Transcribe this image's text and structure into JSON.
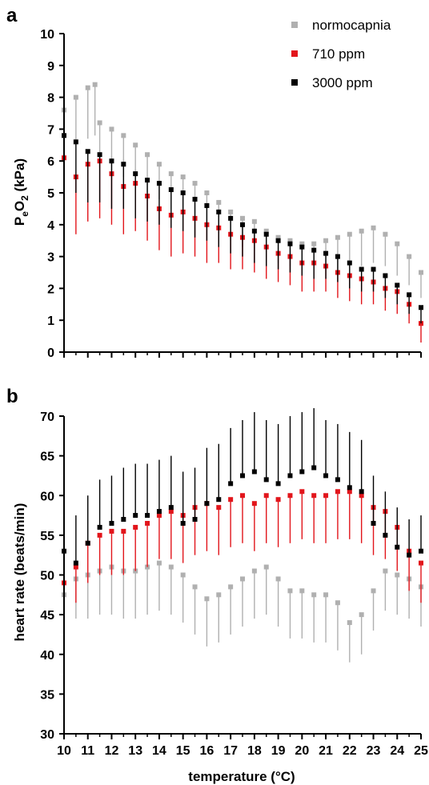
{
  "chart_data": [
    {
      "panel": "a",
      "type": "scatter",
      "ylabel_parts": {
        "base1": "P",
        "sub1": "e",
        "base2": "O",
        "sub2": "2",
        "unit": " (kPa)"
      },
      "xlabel": "",
      "xlim": [
        10,
        25
      ],
      "ylim": [
        0,
        10
      ],
      "yticks": [
        0,
        1,
        2,
        3,
        4,
        5,
        6,
        7,
        8,
        9,
        10
      ],
      "error_bars": "lower",
      "legend_position": "top-right",
      "series": [
        {
          "name": "normocapnia",
          "color": "#b0b0b0",
          "x": [
            10.0,
            10.5,
            11.0,
            11.3,
            11.5,
            12.0,
            12.5,
            13.0,
            13.5,
            14.0,
            14.5,
            15.0,
            15.5,
            16.0,
            16.5,
            17.0,
            17.5,
            18.0,
            18.5,
            19.0,
            19.5,
            20.0,
            20.5,
            21.0,
            21.5,
            22.0,
            22.5,
            23.0,
            23.5,
            24.0,
            24.5,
            25.0
          ],
          "y": [
            7.6,
            8.0,
            8.3,
            8.4,
            7.2,
            7.0,
            6.8,
            6.5,
            6.2,
            5.9,
            5.6,
            5.5,
            5.3,
            5.0,
            4.7,
            4.4,
            4.2,
            4.1,
            3.8,
            3.6,
            3.5,
            3.4,
            3.4,
            3.5,
            3.6,
            3.7,
            3.8,
            3.9,
            3.7,
            3.4,
            3.0,
            2.5
          ],
          "err": [
            1.3,
            1.5,
            1.6,
            1.6,
            1.4,
            1.3,
            1.3,
            1.2,
            1.2,
            1.1,
            1.1,
            1.0,
            1.0,
            1.0,
            0.9,
            0.9,
            0.9,
            0.9,
            0.8,
            0.8,
            0.8,
            0.8,
            0.8,
            0.9,
            1.0,
            1.0,
            1.1,
            1.1,
            1.0,
            1.0,
            0.9,
            0.8
          ]
        },
        {
          "name": "710 ppm",
          "color": "#e2151b",
          "x": [
            10.0,
            10.5,
            11.0,
            11.5,
            12.0,
            12.5,
            13.0,
            13.5,
            14.0,
            14.5,
            15.0,
            15.5,
            16.0,
            16.5,
            17.0,
            17.5,
            18.0,
            18.5,
            19.0,
            19.5,
            20.0,
            20.5,
            21.0,
            21.5,
            22.0,
            22.5,
            23.0,
            23.5,
            24.0,
            24.5,
            25.0
          ],
          "y": [
            6.1,
            5.5,
            5.9,
            6.0,
            5.6,
            5.2,
            5.3,
            4.9,
            4.5,
            4.3,
            4.4,
            4.2,
            4.0,
            3.9,
            3.7,
            3.6,
            3.5,
            3.3,
            3.1,
            3.0,
            2.8,
            2.8,
            2.7,
            2.5,
            2.4,
            2.3,
            2.2,
            2.0,
            1.9,
            1.5,
            0.9
          ],
          "err": [
            2.0,
            1.8,
            1.8,
            1.8,
            1.6,
            1.5,
            1.5,
            1.4,
            1.3,
            1.3,
            1.3,
            1.2,
            1.2,
            1.1,
            1.1,
            1.0,
            1.0,
            1.0,
            0.9,
            0.9,
            0.9,
            0.9,
            0.8,
            0.8,
            0.8,
            0.8,
            0.7,
            0.7,
            0.7,
            0.6,
            0.6
          ]
        },
        {
          "name": "3000 ppm",
          "color": "#000000",
          "x": [
            10.0,
            10.5,
            11.0,
            11.5,
            12.0,
            12.5,
            13.0,
            13.5,
            14.0,
            14.5,
            15.0,
            15.5,
            16.0,
            16.5,
            17.0,
            17.5,
            18.0,
            18.5,
            19.0,
            19.5,
            20.0,
            20.5,
            21.0,
            21.5,
            22.0,
            22.5,
            23.0,
            23.5,
            24.0,
            24.5,
            25.0
          ],
          "y": [
            6.8,
            6.6,
            6.3,
            6.2,
            6.0,
            5.9,
            5.6,
            5.4,
            5.3,
            5.1,
            5.0,
            4.8,
            4.6,
            4.4,
            4.2,
            4.0,
            3.8,
            3.7,
            3.5,
            3.4,
            3.3,
            3.2,
            3.1,
            3.0,
            2.8,
            2.6,
            2.6,
            2.4,
            2.1,
            1.8,
            1.4
          ],
          "err": [
            1.7,
            1.6,
            1.6,
            1.5,
            1.5,
            1.4,
            1.4,
            1.3,
            1.3,
            1.2,
            1.2,
            1.2,
            1.1,
            1.1,
            1.1,
            1.0,
            1.0,
            1.0,
            0.9,
            0.9,
            0.9,
            0.9,
            0.8,
            0.8,
            0.8,
            0.7,
            0.7,
            0.7,
            0.6,
            0.6,
            0.5
          ]
        }
      ]
    },
    {
      "panel": "b",
      "type": "scatter",
      "ylabel": "heart rate (beats/min)",
      "xlabel": "temperature (°C)",
      "xlim": [
        10,
        25
      ],
      "ylim": [
        30,
        70
      ],
      "yticks": [
        30,
        35,
        40,
        45,
        50,
        55,
        60,
        65,
        70
      ],
      "xticks": [
        10,
        11,
        12,
        13,
        14,
        15,
        16,
        17,
        18,
        19,
        20,
        21,
        22,
        23,
        24,
        25
      ],
      "error_bars": "mixed",
      "series": [
        {
          "name": "normocapnia",
          "color": "#b0b0b0",
          "x": [
            10.0,
            10.5,
            11.0,
            11.5,
            12.0,
            12.5,
            13.0,
            13.5,
            14.0,
            14.5,
            15.0,
            15.5,
            16.0,
            16.5,
            17.0,
            17.5,
            18.0,
            18.5,
            19.0,
            19.5,
            20.0,
            20.5,
            21.0,
            21.5,
            22.0,
            22.5,
            23.0,
            23.5,
            24.0,
            24.5,
            25.0
          ],
          "y": [
            47.5,
            49.5,
            50.0,
            50.5,
            51.0,
            50.5,
            50.5,
            51.0,
            51.5,
            51.0,
            50.0,
            48.5,
            47.0,
            47.5,
            48.5,
            49.5,
            50.5,
            51.0,
            49.5,
            48.0,
            48.0,
            47.5,
            47.5,
            46.5,
            44.0,
            45.0,
            48.0,
            50.5,
            50.0,
            49.5,
            48.5
          ],
          "err": [
            4.5,
            5.0,
            5.5,
            5.5,
            6.0,
            6.0,
            6.0,
            6.0,
            6.0,
            6.0,
            6.0,
            6.0,
            6.0,
            6.0,
            6.0,
            6.0,
            6.0,
            6.0,
            6.0,
            6.0,
            6.0,
            6.0,
            6.0,
            6.0,
            5.0,
            5.0,
            5.0,
            5.0,
            5.0,
            5.0,
            5.0
          ]
        },
        {
          "name": "710 ppm",
          "color": "#e2151b",
          "x": [
            10.0,
            10.5,
            11.0,
            11.5,
            12.0,
            12.5,
            13.0,
            13.5,
            14.0,
            14.5,
            15.0,
            15.5,
            16.0,
            16.5,
            17.0,
            17.5,
            18.0,
            18.5,
            19.0,
            19.5,
            20.0,
            20.5,
            21.0,
            21.5,
            22.0,
            22.5,
            23.0,
            23.5,
            24.0,
            24.5,
            25.0
          ],
          "y": [
            49.0,
            51.0,
            54.0,
            55.0,
            55.5,
            55.5,
            56.0,
            56.5,
            57.5,
            58.0,
            57.5,
            58.5,
            59.0,
            58.5,
            59.5,
            60.0,
            59.0,
            60.0,
            59.5,
            60.0,
            60.5,
            60.0,
            60.0,
            60.5,
            60.5,
            60.0,
            58.5,
            58.0,
            56.0,
            53.0,
            51.5
          ],
          "err": [
            4.0,
            4.5,
            5.0,
            5.0,
            5.5,
            5.5,
            5.5,
            5.5,
            5.5,
            6.0,
            6.0,
            6.0,
            6.0,
            6.0,
            6.0,
            6.0,
            6.0,
            6.0,
            6.0,
            6.0,
            6.0,
            6.0,
            6.0,
            6.0,
            6.0,
            6.0,
            6.0,
            6.0,
            5.5,
            5.0,
            5.0
          ]
        },
        {
          "name": "3000 ppm",
          "color": "#000000",
          "x": [
            10.0,
            10.5,
            11.0,
            11.5,
            12.0,
            12.5,
            13.0,
            13.5,
            14.0,
            14.5,
            15.0,
            15.5,
            16.0,
            16.5,
            17.0,
            17.5,
            18.0,
            18.5,
            19.0,
            19.5,
            20.0,
            20.5,
            21.0,
            21.5,
            22.0,
            22.5,
            23.0,
            23.5,
            24.0,
            24.5,
            25.0
          ],
          "y": [
            53.0,
            51.5,
            54.0,
            56.0,
            56.5,
            57.0,
            57.5,
            57.5,
            58.0,
            58.5,
            56.5,
            57.0,
            59.0,
            59.5,
            61.5,
            62.5,
            63.0,
            62.0,
            61.5,
            62.5,
            63.0,
            63.5,
            62.5,
            62.0,
            61.0,
            60.5,
            56.5,
            55.0,
            53.5,
            52.5,
            53.0
          ],
          "err": [
            6.0,
            6.0,
            6.0,
            6.0,
            6.0,
            6.5,
            6.5,
            6.5,
            6.5,
            6.5,
            6.5,
            6.5,
            7.0,
            7.0,
            7.0,
            7.0,
            7.5,
            7.5,
            7.5,
            7.5,
            7.5,
            7.5,
            7.0,
            7.0,
            7.0,
            6.5,
            6.0,
            5.5,
            5.0,
            4.5,
            4.5
          ]
        }
      ]
    }
  ]
}
